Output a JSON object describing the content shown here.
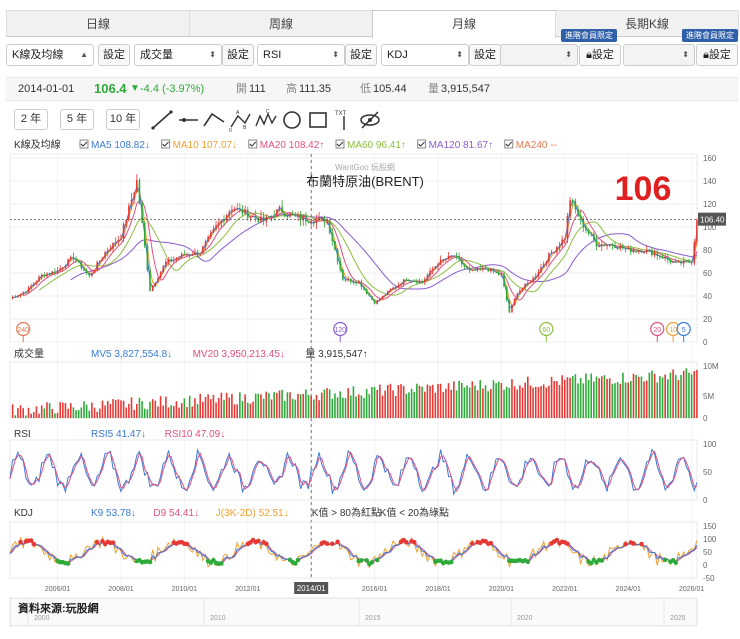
{
  "tabs": [
    "日線",
    "周線",
    "月線",
    "長期K線"
  ],
  "active_tab": "月線",
  "selectors": {
    "main": "K線及均線",
    "volume": "成交量",
    "rsi": "RSI",
    "kdj": "KDJ",
    "setting_label": "設定",
    "vip_label": "進階會員限定"
  },
  "info": {
    "date": "2014-01-01",
    "price": "106.4",
    "change": "-4.4 (-3.97%)",
    "open_label": "開",
    "open": "111",
    "high_label": "高",
    "high": "111.35",
    "low_label": "低",
    "low": "105.44",
    "vol_label": "量",
    "vol": "3,915,547"
  },
  "periods": [
    "2 年",
    "5 年",
    "10 年"
  ],
  "tool_icons": [
    "line-tool-icon",
    "ray-tool-icon",
    "arc-tool-icon",
    "abc-pattern-icon",
    "abcde-pattern-icon",
    "circle-tool-icon",
    "rect-tool-icon",
    "text-tool-icon",
    "hide-drawings-icon"
  ],
  "watermark_top": "WantGoo 玩股網",
  "price_legend": {
    "label": "K線及均線",
    "items": [
      {
        "text": "MA5 108.82↓",
        "color": "#3a7bd5"
      },
      {
        "text": "MA10 107.07↓",
        "color": "#f0a030"
      },
      {
        "text": "MA20 108.42↑",
        "color": "#e05080"
      },
      {
        "text": "MA60 96.41↑",
        "color": "#8cbf3f"
      },
      {
        "text": "MA120 81.67↑",
        "color": "#8a5cd0"
      },
      {
        "text": "MA240 --",
        "color": "#e07a50"
      }
    ]
  },
  "vol_legend": {
    "label": "成交量",
    "items": [
      {
        "text": "MV5 3,827,554.8↓",
        "color": "#3a7bd5"
      },
      {
        "text": "MV20 3,950,213.45↓",
        "color": "#e05080"
      },
      {
        "text": "量 3,915,547↑",
        "color": "#333333"
      }
    ]
  },
  "rsi_legend": {
    "label": "RSI",
    "items": [
      {
        "text": "RSI5 41.47↓",
        "color": "#3a7bd5"
      },
      {
        "text": "RSI10 47.09↓",
        "color": "#e05080"
      }
    ]
  },
  "kdj_legend": {
    "label": "KDJ",
    "items": [
      {
        "text": "K9 53.78↓",
        "color": "#3a7bd5"
      },
      {
        "text": "D9 54.41↓",
        "color": "#e05080"
      },
      {
        "text": "J(3K-2D) 52.51↓",
        "color": "#f0a030"
      },
      {
        "text": "K值 > 80為紅點",
        "color": "#333333"
      },
      {
        "text": "K值 < 20為綠點",
        "color": "#333333"
      }
    ]
  },
  "annotation_big": "106",
  "current_price_tag": "106.40",
  "markers": [
    "240",
    "120",
    "60",
    "20",
    "10",
    "5"
  ],
  "crosshair_label": "2014/01",
  "source": "資料來源:玩股網",
  "colors": {
    "up": "#e53935",
    "down": "#2eaa3a",
    "ma5": "#3a7bd5",
    "ma10": "#f0a030",
    "ma20": "#e05080",
    "ma60": "#8cbf3f",
    "ma120": "#8a5cd0",
    "ma240": "#e07a50"
  },
  "chart_data": [
    {
      "type": "candlestick",
      "title": "布蘭特原油(BRENT)",
      "ylim": [
        0,
        160
      ],
      "yticks": [
        0,
        20,
        40,
        60,
        80,
        100,
        120,
        140,
        160
      ],
      "x_tick_labels": [
        "2006/01",
        "2008/01",
        "2010/01",
        "2012/01",
        "2014/01",
        "2016/01",
        "2018/01",
        "2020/01",
        "2022/01",
        "2024/01",
        "2026/01"
      ],
      "lower_axis_labels": [
        "2000",
        "2010",
        "2015",
        "2020",
        "2025"
      ],
      "close_series_approx": [
        {
          "x": "2004/07",
          "y": 38
        },
        {
          "x": "2005/01",
          "y": 44
        },
        {
          "x": "2005/07",
          "y": 58
        },
        {
          "x": "2006/01",
          "y": 62
        },
        {
          "x": "2006/07",
          "y": 74
        },
        {
          "x": "2007/01",
          "y": 57
        },
        {
          "x": "2007/07",
          "y": 78
        },
        {
          "x": "2008/01",
          "y": 92
        },
        {
          "x": "2008/07",
          "y": 140
        },
        {
          "x": "2008/12",
          "y": 45
        },
        {
          "x": "2009/06",
          "y": 69
        },
        {
          "x": "2010/01",
          "y": 76
        },
        {
          "x": "2010/07",
          "y": 78
        },
        {
          "x": "2011/01",
          "y": 100
        },
        {
          "x": "2011/07",
          "y": 117
        },
        {
          "x": "2012/01",
          "y": 111
        },
        {
          "x": "2012/07",
          "y": 105
        },
        {
          "x": "2013/01",
          "y": 115
        },
        {
          "x": "2013/07",
          "y": 108
        },
        {
          "x": "2014/01",
          "y": 106.4
        },
        {
          "x": "2014/07",
          "y": 106
        },
        {
          "x": "2015/01",
          "y": 55
        },
        {
          "x": "2015/07",
          "y": 52
        },
        {
          "x": "2016/01",
          "y": 34
        },
        {
          "x": "2016/07",
          "y": 45
        },
        {
          "x": "2017/01",
          "y": 55
        },
        {
          "x": "2017/07",
          "y": 52
        },
        {
          "x": "2018/01",
          "y": 69
        },
        {
          "x": "2018/07",
          "y": 75
        },
        {
          "x": "2019/01",
          "y": 61
        },
        {
          "x": "2019/07",
          "y": 64
        },
        {
          "x": "2020/01",
          "y": 58
        },
        {
          "x": "2020/04",
          "y": 26
        },
        {
          "x": "2020/07",
          "y": 43
        },
        {
          "x": "2021/01",
          "y": 55
        },
        {
          "x": "2021/07",
          "y": 75
        },
        {
          "x": "2022/01",
          "y": 91
        },
        {
          "x": "2022/03",
          "y": 125
        },
        {
          "x": "2022/07",
          "y": 105
        },
        {
          "x": "2023/01",
          "y": 85
        },
        {
          "x": "2023/07",
          "y": 85
        },
        {
          "x": "2024/01",
          "y": 80
        },
        {
          "x": "2024/07",
          "y": 80
        },
        {
          "x": "2025/01",
          "y": 75
        },
        {
          "x": "2025/07",
          "y": 68
        },
        {
          "x": "2026/01",
          "y": 70
        },
        {
          "x": "2026/03",
          "y": 106.4
        }
      ]
    },
    {
      "type": "bar",
      "title": "成交量",
      "yticks": [
        "0",
        "5M",
        "10M"
      ]
    },
    {
      "type": "line",
      "title": "RSI",
      "yticks": [
        0,
        50,
        100
      ]
    },
    {
      "type": "line",
      "title": "KDJ",
      "yticks": [
        -50,
        0,
        50,
        100,
        150
      ]
    }
  ]
}
